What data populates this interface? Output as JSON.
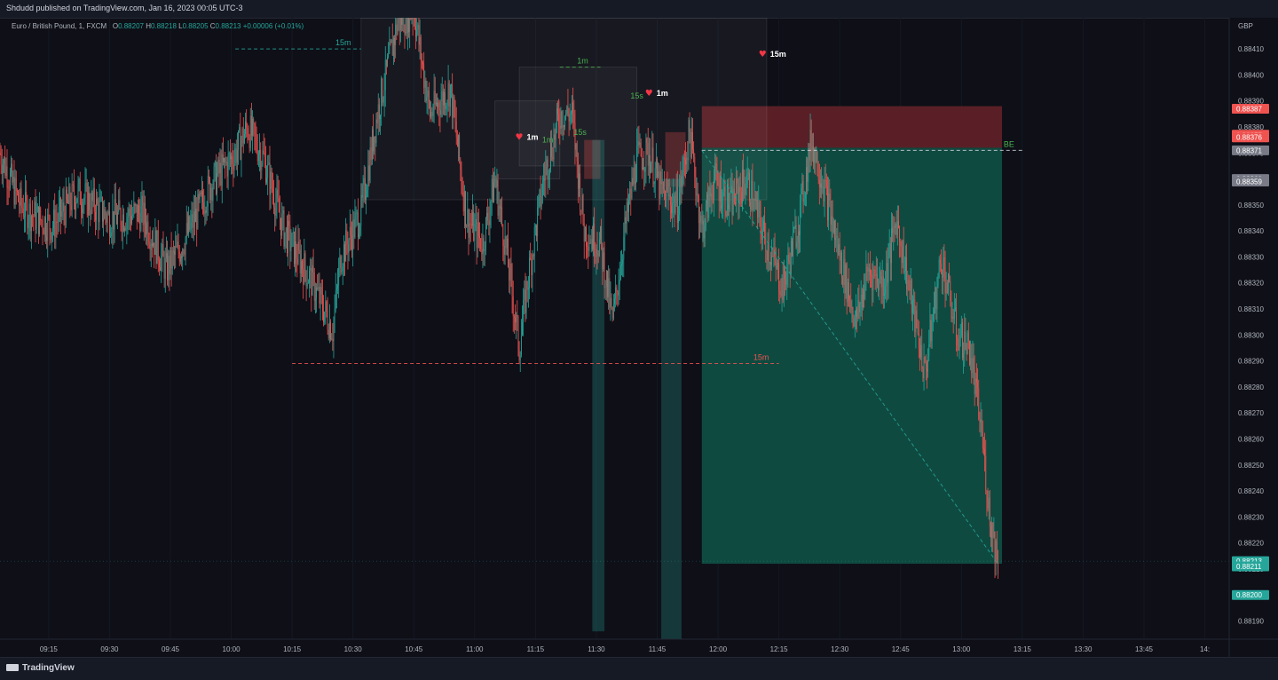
{
  "header": {
    "published": "Shdudd published on TradingView.com, Jan 16, 2023 00:05 UTC-3"
  },
  "legend": {
    "symbol": "Euro / British Pound, 1, FXCM",
    "o_label": "O",
    "o": "0.88207",
    "h_label": "H",
    "h": "0.88218",
    "l_label": "L",
    "l": "0.88205",
    "c_label": "C",
    "c": "0.88213",
    "change": "+0.00006 (+0.01%)"
  },
  "footer": {
    "brand": "TradingView"
  },
  "colors": {
    "up": "#26a69a",
    "down": "#ef5350",
    "background": "#0e0f17",
    "target_zone": "#0f4a40",
    "stop_zone": "#5a1f26",
    "annotation": "#4caf50",
    "heart": "#f23645"
  },
  "chart_data": {
    "type": "candlestick",
    "currency": "GBP",
    "ylim": [
      0.88183,
      0.88422
    ],
    "price_ticks": [
      "0.88410",
      "0.88400",
      "0.88390",
      "0.88380",
      "0.88370",
      "0.88360",
      "0.88350",
      "0.88340",
      "0.88330",
      "0.88320",
      "0.88310",
      "0.88300",
      "0.88290",
      "0.88280",
      "0.88270",
      "0.88260",
      "0.88250",
      "0.88240",
      "0.88230",
      "0.88220",
      "0.88210",
      "0.88200",
      "0.88190"
    ],
    "time_ticks": [
      "09:15",
      "09:30",
      "09:45",
      "10:00",
      "10:15",
      "10:30",
      "10:45",
      "11:00",
      "11:15",
      "11:30",
      "11:45",
      "12:00",
      "12:15",
      "12:30",
      "12:45",
      "13:00",
      "13:15",
      "13:30",
      "13:45",
      "14:"
    ],
    "x_domain": [
      "09:03",
      "14:06"
    ],
    "last_candle_time": "13:09",
    "price_labels": [
      {
        "text": "0.88387",
        "color": "#ef5350"
      },
      {
        "text": "0.88377",
        "color": "#ef5350"
      },
      {
        "text": "0.88376",
        "color": "#ef5350"
      },
      {
        "text": "0.88371",
        "color": "#787b86"
      },
      {
        "text": "0.88360",
        "color": "#787b86"
      },
      {
        "text": "0.88359",
        "color": "#787b86"
      },
      {
        "text": "0.88213",
        "color": "#26a69a"
      },
      {
        "text": "0.88211",
        "color": "#26a69a"
      },
      {
        "text": "0.88200",
        "color": "#26a69a"
      }
    ],
    "price_path": [
      [
        "09:03",
        0.8837
      ],
      [
        "09:08",
        0.8835
      ],
      [
        "09:12",
        0.88345
      ],
      [
        "09:16",
        0.88342
      ],
      [
        "09:22",
        0.88355
      ],
      [
        "09:30",
        0.88345
      ],
      [
        "09:38",
        0.88347
      ],
      [
        "09:44",
        0.88325
      ],
      [
        "09:48",
        0.88335
      ],
      [
        "09:55",
        0.88358
      ],
      [
        "10:01",
        0.8837
      ],
      [
        "10:04",
        0.8838
      ],
      [
        "10:08",
        0.88368
      ],
      [
        "10:13",
        0.8834
      ],
      [
        "10:20",
        0.8832
      ],
      [
        "10:25",
        0.88302
      ],
      [
        "10:27",
        0.8833
      ],
      [
        "10:32",
        0.88347
      ],
      [
        "10:36",
        0.88385
      ],
      [
        "10:41",
        0.8842
      ],
      [
        "10:45",
        0.88425
      ],
      [
        "10:49",
        0.88385
      ],
      [
        "10:54",
        0.88395
      ],
      [
        "10:58",
        0.88345
      ],
      [
        "11:02",
        0.88335
      ],
      [
        "11:05",
        0.8836
      ],
      [
        "11:08",
        0.8833
      ],
      [
        "11:11",
        0.88295
      ],
      [
        "11:13",
        0.8832
      ],
      [
        "11:17",
        0.8836
      ],
      [
        "11:21",
        0.88385
      ],
      [
        "11:24",
        0.88385
      ],
      [
        "11:27",
        0.8834
      ],
      [
        "11:31",
        0.88335
      ],
      [
        "11:34",
        0.88305
      ],
      [
        "11:37",
        0.8834
      ],
      [
        "11:40",
        0.88368
      ],
      [
        "11:43",
        0.8837
      ],
      [
        "11:46",
        0.88355
      ],
      [
        "11:50",
        0.8835
      ],
      [
        "11:53",
        0.88378
      ],
      [
        "11:56",
        0.8834
      ],
      [
        "11:59",
        0.8836
      ],
      [
        "12:03",
        0.8835
      ],
      [
        "12:07",
        0.8836
      ],
      [
        "12:12",
        0.88335
      ],
      [
        "12:16",
        0.88318
      ],
      [
        "12:20",
        0.88345
      ],
      [
        "12:23",
        0.88375
      ],
      [
        "12:26",
        0.88358
      ],
      [
        "12:30",
        0.8833
      ],
      [
        "12:34",
        0.88305
      ],
      [
        "12:37",
        0.88325
      ],
      [
        "12:41",
        0.8832
      ],
      [
        "12:44",
        0.88345
      ],
      [
        "12:48",
        0.8831
      ],
      [
        "12:51",
        0.88285
      ],
      [
        "12:55",
        0.8833
      ],
      [
        "12:59",
        0.883
      ],
      [
        "13:02",
        0.88295
      ],
      [
        "13:05",
        0.88262
      ],
      [
        "13:07",
        0.8823
      ],
      [
        "13:09",
        0.88213
      ]
    ],
    "zones": [
      {
        "kind": "stop",
        "from": "11:56",
        "to": "13:10",
        "low": 0.88372,
        "high": 0.88388
      },
      {
        "kind": "target",
        "from": "11:56",
        "to": "13:10",
        "low": 0.88212,
        "high": 0.88372
      },
      {
        "kind": "box",
        "from": "10:32",
        "to": "12:12",
        "low": 0.88352,
        "high": 0.88422
      },
      {
        "kind": "box",
        "from": "11:11",
        "to": "11:40",
        "low": 0.88365,
        "high": 0.88403
      },
      {
        "kind": "box",
        "from": "11:05",
        "to": "11:21",
        "low": 0.8836,
        "high": 0.8839
      },
      {
        "kind": "red-box",
        "from": "11:47",
        "to": "11:52",
        "low": 0.88357,
        "high": 0.88378
      },
      {
        "kind": "red-box",
        "from": "11:27",
        "to": "11:31",
        "low": 0.8836,
        "high": 0.88375
      },
      {
        "kind": "vbar",
        "from": "11:29",
        "to": "11:32",
        "low": 0.88186,
        "high": 0.88375
      },
      {
        "kind": "vbar",
        "from": "11:46",
        "to": "11:51",
        "low": 0.88183,
        "high": 0.8836
      }
    ],
    "lines": [
      {
        "from": [
          "10:01",
          0.8841
        ],
        "to": [
          "10:32",
          0.8841
        ],
        "color": "#26a69a",
        "label": "15m"
      },
      {
        "from": [
          "10:15",
          0.88289
        ],
        "to": [
          "12:15",
          0.88289
        ],
        "color": "#ef5350",
        "label": "15m"
      },
      {
        "from": [
          "11:21",
          0.88403
        ],
        "to": [
          "11:31",
          0.88403
        ],
        "color": "#4caf50",
        "label": "1m"
      },
      {
        "from": [
          "11:56",
          0.88371
        ],
        "to": [
          "13:15",
          0.88371
        ],
        "color": "#d1d4dc",
        "label": "BE"
      },
      {
        "from": [
          "11:56",
          0.88371
        ],
        "to": [
          "13:09",
          0.88212
        ],
        "color": "#26a69a",
        "label": ""
      }
    ],
    "annotations": [
      {
        "text": "1m",
        "at": [
          "11:18",
          0.88374
        ],
        "color": "#4caf50",
        "heart": false
      },
      {
        "text": "15s",
        "at": [
          "11:26",
          0.88377
        ],
        "color": "#4caf50",
        "heart": false
      },
      {
        "text": "15s",
        "at": [
          "11:40",
          0.88391
        ],
        "color": "#4caf50",
        "heart": false
      },
      {
        "text": "1m",
        "at": [
          "11:10",
          0.88376
        ],
        "heart": true
      },
      {
        "text": "1m",
        "at": [
          "11:42",
          0.88393
        ],
        "heart": true
      },
      {
        "text": "15m",
        "at": [
          "12:10",
          0.88408
        ],
        "heart": true
      }
    ]
  }
}
